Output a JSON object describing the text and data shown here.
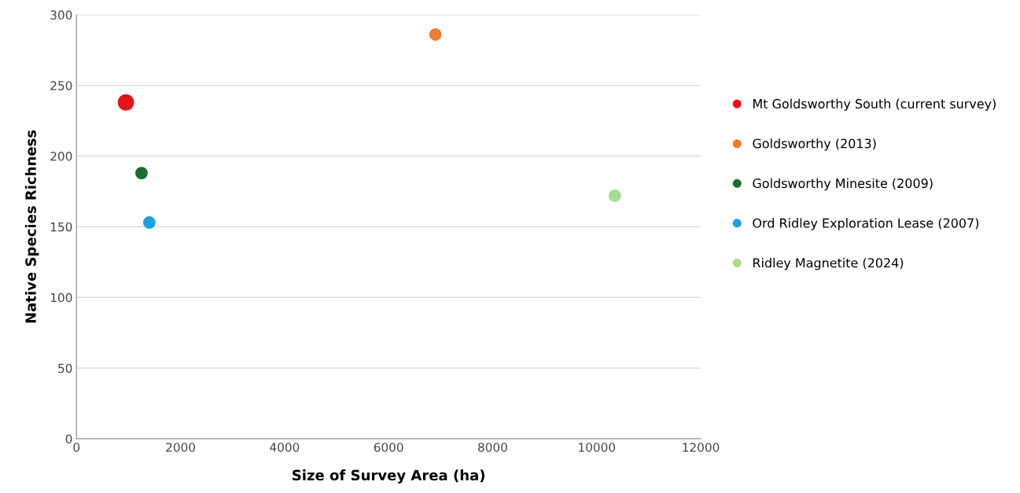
{
  "chart_data": {
    "type": "scatter",
    "xlabel": "Size of Survey Area (ha)",
    "ylabel": "Native Species Richness",
    "xlim": [
      0,
      12000
    ],
    "xticks": [
      0,
      2000,
      4000,
      6000,
      8000,
      10000,
      12000
    ],
    "ylim": [
      0,
      300
    ],
    "yticks": [
      0,
      50,
      100,
      150,
      200,
      250,
      300
    ],
    "grid": "y",
    "legend": "right",
    "marker": "circle",
    "series": [
      {
        "name": "Mt Goldsworthy South (current survey)",
        "color": "#e3141b",
        "x": [
          950
        ],
        "values": [
          238
        ]
      },
      {
        "name": "Goldsworthy (2013)",
        "color": "#ed7d31",
        "x": [
          6900
        ],
        "values": [
          286
        ]
      },
      {
        "name": "Goldsworthy Minesite (2009)",
        "color": "#1e6b2e",
        "x": [
          1250
        ],
        "values": [
          188
        ]
      },
      {
        "name": "Ord Ridley Exploration Lease (2007)",
        "color": "#1fa0d8",
        "x": [
          1400
        ],
        "values": [
          153
        ]
      },
      {
        "name": "Ridley Magnetite (2024)",
        "color": "#a9dc93",
        "x": [
          10350
        ],
        "values": [
          172
        ]
      }
    ]
  }
}
